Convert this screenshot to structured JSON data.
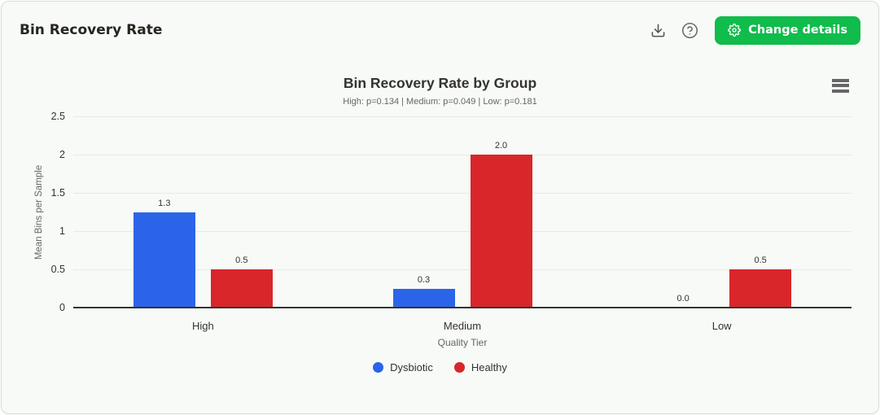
{
  "header": {
    "title": "Bin Recovery Rate",
    "change_details_label": "Change details"
  },
  "icons": {
    "download": "download-icon",
    "help": "help-circle-icon",
    "gear": "gear-icon",
    "context_menu": "hamburger-menu-icon"
  },
  "colors": {
    "button_green": "#10bc4b",
    "card_background": "#f8faf7",
    "card_border": "#d9dcd6",
    "grid_line": "#e7e9e5",
    "axis_line": "#333333",
    "title_text": "#333333",
    "muted_text": "#666666",
    "series_blue": "#2b64e8",
    "series_red": "#d9262a"
  },
  "chart_data": {
    "type": "bar",
    "title": "Bin Recovery Rate by Group",
    "subtitle": "High: p=0.134 | Medium: p=0.049 | Low: p=0.181",
    "xlabel": "Quality Tier",
    "ylabel": "Mean Bins per Sample",
    "categories": [
      "High",
      "Medium",
      "Low"
    ],
    "series": [
      {
        "name": "Dysbiotic",
        "color": "#2b64e8",
        "values": [
          1.25,
          0.25,
          0
        ],
        "data_labels": [
          "1.3",
          "0.3",
          "0.0"
        ]
      },
      {
        "name": "Healthy",
        "color": "#d9262a",
        "values": [
          0.5,
          2.0,
          0.5
        ],
        "data_labels": [
          "0.5",
          "2.0",
          "0.5"
        ]
      }
    ],
    "ylim": [
      0,
      2.5
    ],
    "yticks": [
      0,
      0.5,
      1,
      1.5,
      2,
      2.5
    ],
    "ytick_labels": [
      "0",
      "0.5",
      "1",
      "1.5",
      "2",
      "2.5"
    ],
    "grid": true,
    "legend_position": "bottom"
  }
}
